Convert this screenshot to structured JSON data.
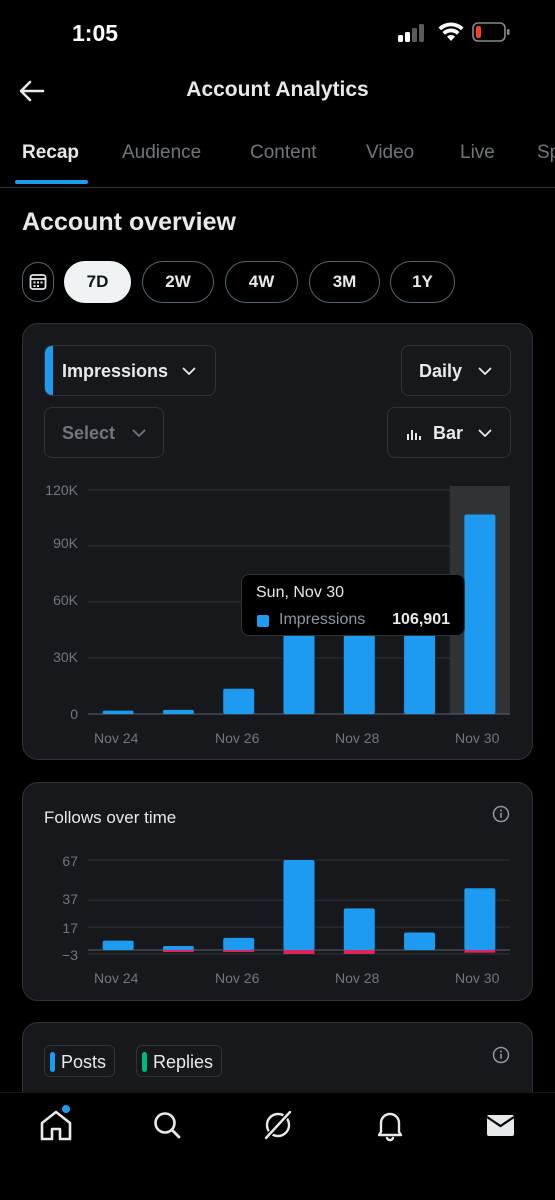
{
  "status_bar": {
    "time": "1:05"
  },
  "header": {
    "title": "Account Analytics"
  },
  "tabs": [
    {
      "label": "Recap",
      "active": true
    },
    {
      "label": "Audience",
      "active": false
    },
    {
      "label": "Content",
      "active": false
    },
    {
      "label": "Video",
      "active": false
    },
    {
      "label": "Live",
      "active": false
    },
    {
      "label": "Sp",
      "active": false
    }
  ],
  "overview": {
    "title": "Account overview",
    "ranges": [
      {
        "label": "7D",
        "active": true
      },
      {
        "label": "2W",
        "active": false
      },
      {
        "label": "4W",
        "active": false
      },
      {
        "label": "3M",
        "active": false
      },
      {
        "label": "1Y",
        "active": false
      }
    ]
  },
  "controls": {
    "metric": "Impressions",
    "granularity": "Daily",
    "compare": "Select",
    "chart_type": "Bar"
  },
  "tooltip": {
    "date": "Sun, Nov 30",
    "series": "Impressions",
    "value": "106,901"
  },
  "follows_card": {
    "title": "Follows over time"
  },
  "posts_card": {
    "legend": [
      "Posts",
      "Replies"
    ]
  },
  "colors": {
    "accent": "#1d9bf0",
    "negative": "#e0245e",
    "replies": "#00ba7c",
    "card_bg": "#16181c",
    "page_bg": "#000000"
  },
  "chart_data": [
    {
      "type": "bar",
      "title": "",
      "categories": [
        "Nov 24",
        "Nov 25",
        "Nov 26",
        "Nov 27",
        "Nov 28",
        "Nov 29",
        "Nov 30"
      ],
      "x_tick_labels": [
        "Nov 24",
        "Nov 26",
        "Nov 28",
        "Nov 30"
      ],
      "series": [
        {
          "name": "Impressions",
          "values": [
            1800,
            2200,
            13500,
            47000,
            47000,
            47000,
            106901
          ]
        }
      ],
      "ylim": [
        0,
        120000
      ],
      "y_ticks": [
        0,
        30000,
        60000,
        90000,
        120000
      ],
      "y_tick_labels": [
        "0",
        "30K",
        "60K",
        "90K",
        "120K"
      ],
      "highlighted": "Nov 30",
      "grid": true
    },
    {
      "type": "bar",
      "title": "Follows over time",
      "categories": [
        "Nov 24",
        "Nov 25",
        "Nov 26",
        "Nov 27",
        "Nov 28",
        "Nov 29",
        "Nov 30"
      ],
      "x_tick_labels": [
        "Nov 24",
        "Nov 26",
        "Nov 28",
        "Nov 30"
      ],
      "series": [
        {
          "name": "Follows",
          "values": [
            7,
            3,
            9,
            67,
            31,
            13,
            46
          ]
        },
        {
          "name": "Unfollows",
          "values": [
            0,
            -1,
            -1,
            -3,
            -3,
            0,
            -2
          ]
        }
      ],
      "ylim": [
        -3,
        67
      ],
      "y_ticks": [
        -3,
        17,
        37,
        67
      ],
      "y_tick_labels": [
        "−3",
        "17",
        "37",
        "67"
      ],
      "grid": true
    }
  ]
}
